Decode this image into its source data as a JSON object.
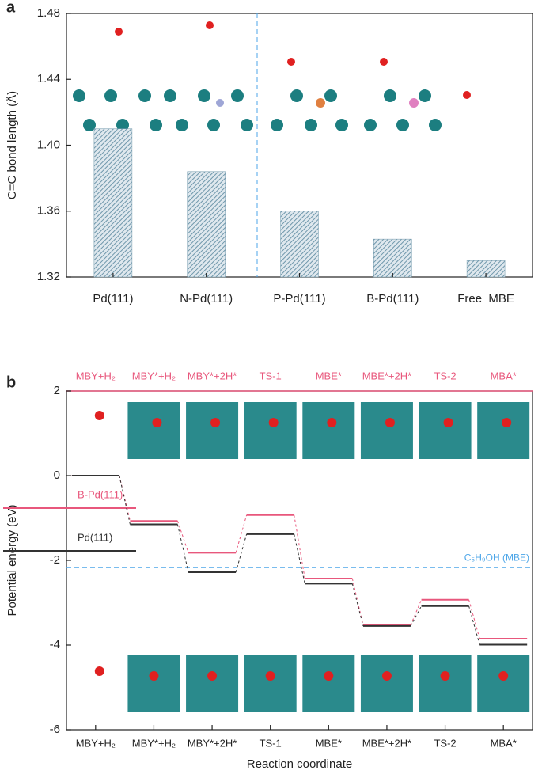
{
  "chart_data": [
    {
      "type": "bar",
      "panel": "a",
      "ylabel": "C=C bond length (Å)",
      "categories": [
        "Pd(111)",
        "N-Pd(111)",
        "P-Pd(111)",
        "B-Pd(111)",
        "Free  MBE"
      ],
      "values": [
        1.41,
        1.384,
        1.36,
        1.343,
        1.33
      ],
      "color": "#6f97ab",
      "ylim": [
        1.32,
        1.48
      ],
      "yticks": [
        1.32,
        1.36,
        {
          "value": 1.4,
          "label": "1.40"
        },
        1.44,
        1.48
      ]
    },
    {
      "type": "step",
      "panel": "b",
      "xlabel": "Reaction coordinate",
      "ylabel": "Potential energy (eV)",
      "categories": [
        "MBY+H₂",
        "MBY*+H₂",
        "MBY*+2H*",
        "TS-1",
        "MBE*",
        "MBE*+2H*",
        "TS-2",
        "MBA*"
      ],
      "series": [
        {
          "name": "B-Pd(111)",
          "color": "#e8577c",
          "values": [
            0,
            -1.07,
            -1.82,
            -0.93,
            -2.43,
            -3.53,
            -2.93,
            -3.85
          ]
        },
        {
          "name": "Pd(111)",
          "color": "#333333",
          "values": [
            0,
            -1.15,
            -2.28,
            -1.38,
            -2.55,
            -3.55,
            -3.08,
            -3.99
          ]
        }
      ],
      "reference_line": {
        "label": "C₅H₉OH (MBE)",
        "value": -2.17,
        "color": "#4da6e8"
      },
      "ylim": [
        -6,
        2
      ],
      "yticks": [
        -6,
        -4,
        -2,
        0,
        2
      ]
    }
  ]
}
